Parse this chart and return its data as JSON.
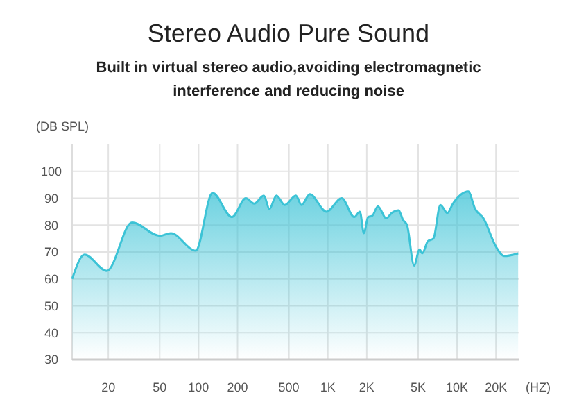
{
  "chart_data": {
    "type": "area",
    "title": "Stereo Audio Pure Sound",
    "subtitle": "Built in virtual stereo audio,avoiding electromagnetic interference and reducing noise",
    "ylabel": "(DB SPL)",
    "xlabel": "(HZ)",
    "log": "x",
    "x": [
      10.5,
      13.1,
      19.5,
      30.5,
      50,
      61,
      95,
      128,
      181,
      232,
      269,
      320,
      353,
      400,
      464,
      566,
      625,
      725,
      975,
      1280,
      1600,
      1770,
      1900,
      2050,
      2210,
      2440,
      2830,
      3120,
      3530,
      3810,
      4100,
      4650,
      5130,
      5380,
      5940,
      6560,
      7430,
      8410,
      9290,
      12200,
      13800,
      16000,
      20000,
      23200,
      29700
    ],
    "series": [
      {
        "color": "#3cc3d6",
        "values": [
          60,
          69,
          63,
          81,
          76,
          77,
          70.5,
          92,
          83,
          90,
          88,
          91,
          86,
          91,
          87.5,
          91,
          87.5,
          91.5,
          85,
          90,
          83,
          85,
          77,
          83,
          83.5,
          87,
          82.5,
          84.5,
          85.5,
          82,
          80,
          65,
          71,
          69.5,
          74,
          75,
          87.5,
          84.5,
          88,
          92.5,
          86,
          82.5,
          72,
          68.5,
          69.5
        ]
      }
    ],
    "xlim": [
      10.5,
      30000
    ],
    "xticks": [
      20,
      50,
      100,
      200,
      500,
      {
        "value": 1000,
        "label": "1K"
      },
      {
        "value": 2000,
        "label": "2K"
      },
      {
        "value": 5000,
        "label": "5K"
      },
      {
        "value": 10000,
        "label": "10K"
      },
      {
        "value": 20000,
        "label": "20K"
      }
    ],
    "ylim": [
      30,
      110
    ],
    "yticks": [
      30,
      40,
      50,
      60,
      70,
      80,
      90,
      100
    ],
    "grid": true
  }
}
